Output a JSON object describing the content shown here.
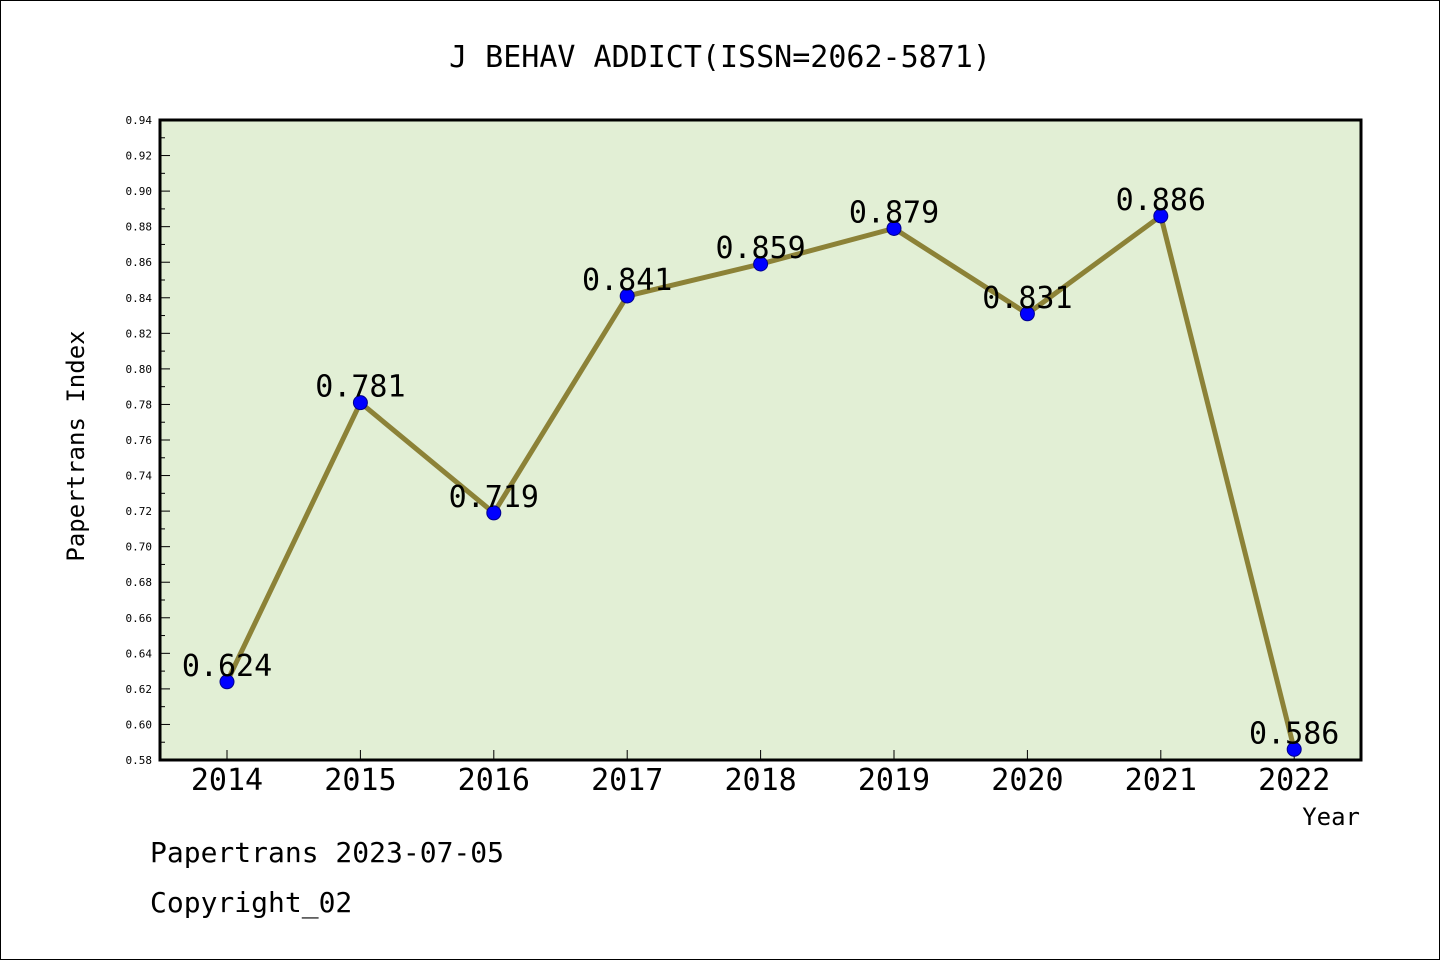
{
  "chart_data": {
    "type": "line",
    "title": "J BEHAV ADDICT(ISSN=2062-5871)",
    "xlabel": "Year",
    "ylabel": "Papertrans Index",
    "categories": [
      "2014",
      "2015",
      "2016",
      "2017",
      "2018",
      "2019",
      "2020",
      "2021",
      "2022"
    ],
    "series": [
      {
        "values": [
          0.624,
          0.781,
          0.719,
          0.841,
          0.859,
          0.879,
          0.831,
          0.886,
          0.586
        ],
        "data_labels": [
          "0.624",
          "0.781",
          "0.719",
          "0.841",
          "0.859",
          "0.879",
          "0.831",
          "0.886",
          "0.586"
        ]
      }
    ],
    "ylim": [
      0.58,
      0.94
    ],
    "yticks": [
      "0.58",
      "0.60",
      "0.62",
      "0.64",
      "0.66",
      "0.68",
      "0.70",
      "0.72",
      "0.74",
      "0.76",
      "0.78",
      "0.80",
      "0.82",
      "0.84",
      "0.86",
      "0.88",
      "0.90",
      "0.92",
      "0.94"
    ],
    "grid": false,
    "colors": {
      "plot_background": "#e2efd5",
      "line": "#8c8237",
      "marker": "#0000ff"
    }
  },
  "footer": {
    "line1": "Papertrans 2023-07-05",
    "line2": "Copyright_02"
  }
}
